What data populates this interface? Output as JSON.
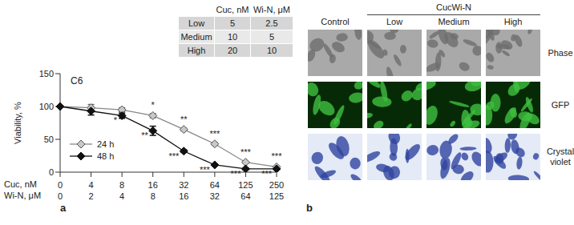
{
  "panel_labels": [
    "a",
    "b"
  ],
  "chart_data": {
    "type": "line",
    "annotation": "C6",
    "categories": [
      0,
      4,
      8,
      16,
      32,
      64,
      125,
      250
    ],
    "xlabel": "Cuc, nM",
    "secondary_categories": [
      0,
      2,
      4,
      8,
      16,
      32,
      64,
      125
    ],
    "secondary_xlabel": "Wi-N, μM",
    "ylabel": "Viability, %",
    "ylim": [
      0,
      150
    ],
    "yticks": [
      0,
      50,
      100,
      150
    ],
    "grid": false,
    "legend": "lower left",
    "series": [
      {
        "name": "24 h",
        "color": "#c8c8c8",
        "marker": "diamond",
        "values": [
          100,
          98,
          95,
          86,
          65,
          43,
          15,
          8
        ],
        "errors": [
          0,
          5,
          3,
          3,
          2,
          2,
          1,
          1
        ],
        "significance": [
          null,
          null,
          null,
          "*",
          "**",
          "***",
          "***",
          "***"
        ]
      },
      {
        "name": "48 h",
        "color": "#111111",
        "marker": "diamond",
        "values": [
          100,
          93,
          86,
          63,
          32,
          11,
          5,
          5
        ],
        "errors": [
          0,
          6,
          4,
          7,
          2,
          1,
          1,
          1
        ],
        "significance": [
          null,
          null,
          "*",
          "**",
          "***",
          "***",
          "***",
          "***"
        ]
      }
    ]
  },
  "table": {
    "header": [
      "",
      "Cuc, nM",
      "Wi-N, μM"
    ],
    "rows": [
      [
        "Low",
        "5",
        "2.5"
      ],
      [
        "Medium",
        "10",
        "5"
      ],
      [
        "High",
        "20",
        "10"
      ]
    ]
  },
  "micrographs": {
    "group_label": "CucWi-N",
    "columns": [
      "Control",
      "Low",
      "Medium",
      "High"
    ],
    "rows": [
      "Phase",
      "GFP",
      "Crystal violet"
    ]
  }
}
